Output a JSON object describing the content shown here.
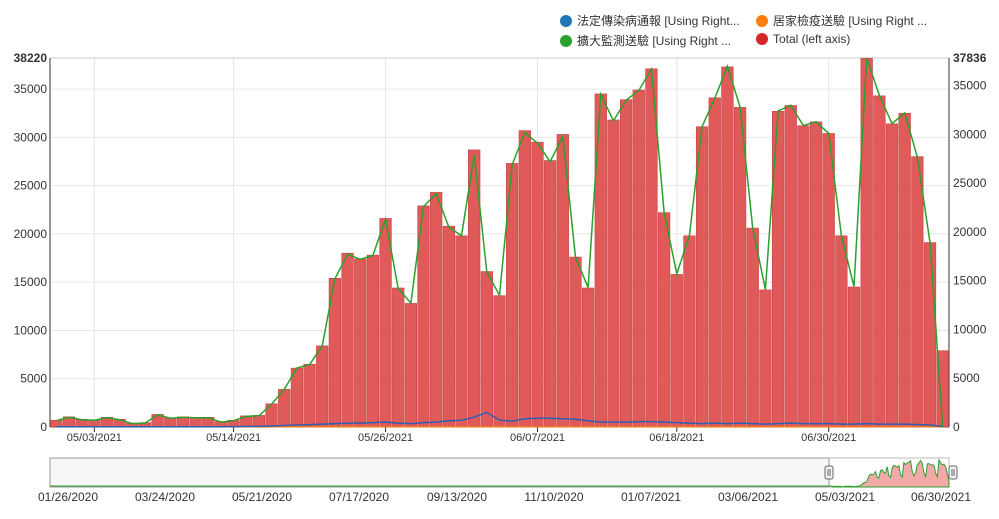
{
  "colors": {
    "bar": "#e05a5a",
    "bar_stroke": "#c74444",
    "line_green": "#2ca02c",
    "line_blue": "#2f5fb0",
    "line_orange": "#ff7f0e",
    "grid": "#e6e6e6",
    "navigator_mask": "#f2f2f2",
    "navigator_fill": "#f4a9a9"
  },
  "legend": {
    "items": [
      {
        "label": "法定傳染病通報 [Using Right...",
        "color": "#1f77b4"
      },
      {
        "label": "居家檢疫送驗 [Using Right ...",
        "color": "#ff7f0e"
      },
      {
        "label": "擴大監測送驗 [Using Right ...",
        "color": "#2ca02c"
      },
      {
        "label": "Total (left axis)",
        "color": "#d62728"
      }
    ]
  },
  "chart_data": {
    "type": "bar",
    "left_axis": {
      "max_label": "38220",
      "ticks": [
        "0",
        "5000",
        "10000",
        "15000",
        "20000",
        "25000",
        "30000",
        "35000"
      ],
      "ylim": [
        0,
        38220
      ]
    },
    "right_axis": {
      "max_label": "37836",
      "ticks": [
        "0",
        "5000",
        "10000",
        "15000",
        "20000",
        "25000",
        "30000",
        "35000"
      ],
      "ylim": [
        0,
        37836
      ]
    },
    "x_ticks": [
      "05/03/2021",
      "05/14/2021",
      "05/26/2021",
      "06/07/2021",
      "06/18/2021",
      "06/30/2021"
    ],
    "x_tick_index": [
      3,
      14,
      26,
      38,
      49,
      61
    ],
    "series": [
      {
        "name": "Total (left axis)",
        "type": "bar",
        "values": [
          700,
          1050,
          800,
          750,
          1000,
          800,
          400,
          450,
          1300,
          950,
          1050,
          1000,
          1000,
          550,
          700,
          1150,
          1200,
          2400,
          3900,
          6100,
          6500,
          8400,
          15400,
          18000,
          17400,
          17800,
          21600,
          14400,
          12800,
          22900,
          24300,
          20800,
          19800,
          28700,
          16100,
          13600,
          27300,
          30700,
          29500,
          27600,
          30300,
          17600,
          14400,
          34500,
          31800,
          33900,
          34900,
          37100,
          22200,
          15800,
          19800,
          31100,
          34100,
          37300,
          33100,
          20600,
          14200,
          32700,
          33300,
          31200,
          31600,
          30400,
          19800,
          14500,
          38200,
          34300,
          31400,
          32500,
          28000,
          19100,
          7900
        ]
      },
      {
        "name": "擴大監測送驗 [Using Right ...",
        "type": "line",
        "values": [
          650,
          1000,
          750,
          700,
          950,
          750,
          350,
          400,
          1250,
          900,
          1000,
          950,
          950,
          500,
          650,
          1100,
          1150,
          2350,
          3850,
          6050,
          6400,
          8300,
          15200,
          17700,
          17200,
          17600,
          21300,
          14200,
          12700,
          22600,
          23900,
          20500,
          19600,
          27900,
          15900,
          13500,
          26900,
          30200,
          29100,
          27200,
          29800,
          17400,
          14300,
          34100,
          31400,
          33500,
          34500,
          36700,
          22000,
          15700,
          19600,
          30800,
          33700,
          37000,
          32800,
          20400,
          14100,
          32400,
          33000,
          30900,
          31300,
          30100,
          19600,
          14400,
          37800,
          34000,
          31100,
          32200,
          27700,
          18900,
          0
        ]
      },
      {
        "name": "法定傳染病通報 [Using Right...",
        "type": "line",
        "values": [
          20,
          20,
          20,
          20,
          20,
          20,
          20,
          20,
          30,
          30,
          30,
          30,
          30,
          30,
          40,
          50,
          60,
          100,
          150,
          200,
          250,
          300,
          350,
          400,
          400,
          450,
          500,
          400,
          350,
          450,
          500,
          650,
          700,
          1000,
          1500,
          700,
          600,
          850,
          900,
          900,
          850,
          800,
          650,
          500,
          500,
          500,
          550,
          550,
          500,
          450,
          400,
          350,
          400,
          350,
          400,
          350,
          300,
          350,
          400,
          350,
          350,
          350,
          300,
          300,
          350,
          300,
          300,
          300,
          250,
          200,
          50
        ]
      },
      {
        "name": "居家檢疫送驗 [Using Right ...",
        "type": "line",
        "values": [
          20,
          20,
          20,
          20,
          20,
          20,
          20,
          20,
          20,
          20,
          20,
          20,
          20,
          20,
          20,
          20,
          20,
          20,
          20,
          20,
          20,
          20,
          20,
          20,
          20,
          20,
          20,
          20,
          20,
          20,
          20,
          20,
          20,
          20,
          20,
          20,
          20,
          20,
          20,
          20,
          20,
          20,
          20,
          20,
          20,
          20,
          20,
          20,
          20,
          20,
          20,
          20,
          20,
          20,
          20,
          20,
          20,
          20,
          20,
          20,
          20,
          20,
          20,
          20,
          20,
          20,
          20,
          20,
          20,
          20,
          20
        ]
      }
    ],
    "navigator": {
      "x_ticks": [
        "01/26/2020",
        "03/24/2020",
        "05/21/2020",
        "07/17/2020",
        "09/13/2020",
        "11/10/2020",
        "01/07/2021",
        "03/06/2021",
        "05/03/2021",
        "06/30/2021"
      ],
      "selected_range": [
        "04/30/2021",
        "07/01/2021"
      ]
    }
  }
}
